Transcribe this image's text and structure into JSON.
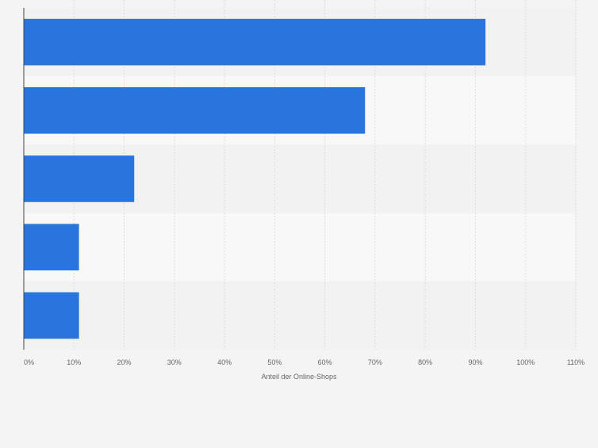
{
  "chart_data": {
    "type": "bar",
    "orientation": "horizontal",
    "categories": [
      "",
      "",
      "",
      "",
      ""
    ],
    "values": [
      92,
      68,
      22,
      11,
      11
    ],
    "xlabel": "Anteil der Online-Shops",
    "ylabel": "",
    "xlim": [
      0,
      110
    ],
    "x_ticks": [
      0,
      10,
      20,
      30,
      40,
      50,
      60,
      70,
      80,
      90,
      100,
      110
    ],
    "x_tick_labels": [
      "0%",
      "10%",
      "20%",
      "30%",
      "40%",
      "50%",
      "60%",
      "70%",
      "80%",
      "90%",
      "100%",
      "110%"
    ],
    "grid": true,
    "legend": "none"
  },
  "colors": {
    "bar": "#2876dd",
    "band_dark": "#f2f2f2",
    "band_light": "#f8f8f8",
    "grid": "#dcdcdc",
    "axis": "#444444",
    "tick_text": "#666666"
  }
}
